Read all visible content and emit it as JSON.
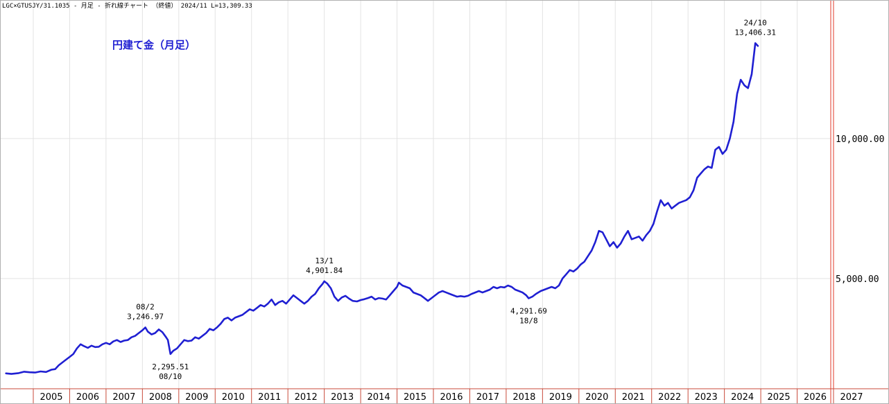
{
  "header": {
    "text": "LGC×GTUSJY/31.1035 - 月足 - 折れ線チャート （終値）  2024/11 L=13,309.33"
  },
  "chart_data": {
    "type": "line",
    "title": "円建て金（月足）",
    "xlabel": "",
    "ylabel": "",
    "x_ticks": [
      "2005",
      "2006",
      "2007",
      "2008",
      "2009",
      "2010",
      "2011",
      "2012",
      "2013",
      "2014",
      "2015",
      "2016",
      "2017",
      "2018",
      "2019",
      "2020",
      "2021",
      "2022",
      "2023",
      "2024",
      "2025",
      "2026",
      "2027"
    ],
    "y_ticks": [
      {
        "value": 5000,
        "label": "5,000.00"
      },
      {
        "value": 10000,
        "label": "10,000.00"
      }
    ],
    "xlim": [
      2004.2,
      2027.3
    ],
    "ylim": [
      1060,
      14900
    ],
    "grid": true,
    "color": "#1f1fd2",
    "series": [
      {
        "name": "",
        "points": [
          [
            2004.25,
            1610
          ],
          [
            2004.4,
            1590
          ],
          [
            2004.6,
            1620
          ],
          [
            2004.75,
            1670
          ],
          [
            2004.9,
            1650
          ],
          [
            2005.05,
            1640
          ],
          [
            2005.2,
            1680
          ],
          [
            2005.35,
            1660
          ],
          [
            2005.5,
            1740
          ],
          [
            2005.6,
            1760
          ],
          [
            2005.7,
            1900
          ],
          [
            2005.85,
            2050
          ],
          [
            2006.0,
            2200
          ],
          [
            2006.1,
            2300
          ],
          [
            2006.2,
            2500
          ],
          [
            2006.3,
            2650
          ],
          [
            2006.4,
            2580
          ],
          [
            2006.5,
            2520
          ],
          [
            2006.6,
            2600
          ],
          [
            2006.7,
            2550
          ],
          [
            2006.8,
            2560
          ],
          [
            2006.9,
            2650
          ],
          [
            2007.0,
            2700
          ],
          [
            2007.1,
            2650
          ],
          [
            2007.2,
            2750
          ],
          [
            2007.3,
            2800
          ],
          [
            2007.4,
            2730
          ],
          [
            2007.5,
            2780
          ],
          [
            2007.6,
            2800
          ],
          [
            2007.7,
            2900
          ],
          [
            2007.8,
            2950
          ],
          [
            2007.9,
            3050
          ],
          [
            2008.0,
            3150
          ],
          [
            2008.08,
            3250
          ],
          [
            2008.15,
            3100
          ],
          [
            2008.25,
            3000
          ],
          [
            2008.35,
            3050
          ],
          [
            2008.45,
            3180
          ],
          [
            2008.55,
            3080
          ],
          [
            2008.65,
            2900
          ],
          [
            2008.7,
            2800
          ],
          [
            2008.77,
            2300
          ],
          [
            2008.85,
            2420
          ],
          [
            2008.95,
            2500
          ],
          [
            2009.05,
            2650
          ],
          [
            2009.15,
            2800
          ],
          [
            2009.25,
            2760
          ],
          [
            2009.35,
            2780
          ],
          [
            2009.45,
            2900
          ],
          [
            2009.55,
            2850
          ],
          [
            2009.65,
            2950
          ],
          [
            2009.75,
            3050
          ],
          [
            2009.85,
            3200
          ],
          [
            2009.95,
            3150
          ],
          [
            2010.05,
            3250
          ],
          [
            2010.15,
            3380
          ],
          [
            2010.25,
            3550
          ],
          [
            2010.35,
            3600
          ],
          [
            2010.45,
            3500
          ],
          [
            2010.55,
            3600
          ],
          [
            2010.65,
            3650
          ],
          [
            2010.75,
            3700
          ],
          [
            2010.85,
            3800
          ],
          [
            2010.95,
            3900
          ],
          [
            2011.05,
            3850
          ],
          [
            2011.15,
            3950
          ],
          [
            2011.25,
            4050
          ],
          [
            2011.35,
            4000
          ],
          [
            2011.45,
            4100
          ],
          [
            2011.55,
            4250
          ],
          [
            2011.65,
            4050
          ],
          [
            2011.75,
            4150
          ],
          [
            2011.85,
            4200
          ],
          [
            2011.95,
            4100
          ],
          [
            2012.05,
            4250
          ],
          [
            2012.15,
            4400
          ],
          [
            2012.25,
            4300
          ],
          [
            2012.35,
            4200
          ],
          [
            2012.45,
            4100
          ],
          [
            2012.55,
            4200
          ],
          [
            2012.65,
            4350
          ],
          [
            2012.75,
            4450
          ],
          [
            2012.85,
            4650
          ],
          [
            2012.95,
            4800
          ],
          [
            2013.0,
            4900
          ],
          [
            2013.08,
            4820
          ],
          [
            2013.18,
            4650
          ],
          [
            2013.28,
            4350
          ],
          [
            2013.38,
            4200
          ],
          [
            2013.48,
            4320
          ],
          [
            2013.58,
            4380
          ],
          [
            2013.68,
            4280
          ],
          [
            2013.78,
            4200
          ],
          [
            2013.9,
            4180
          ],
          [
            2014.0,
            4230
          ],
          [
            2014.1,
            4260
          ],
          [
            2014.2,
            4300
          ],
          [
            2014.3,
            4350
          ],
          [
            2014.4,
            4250
          ],
          [
            2014.5,
            4300
          ],
          [
            2014.6,
            4280
          ],
          [
            2014.7,
            4250
          ],
          [
            2014.8,
            4400
          ],
          [
            2014.9,
            4550
          ],
          [
            2015.0,
            4700
          ],
          [
            2015.05,
            4850
          ],
          [
            2015.15,
            4750
          ],
          [
            2015.25,
            4700
          ],
          [
            2015.35,
            4650
          ],
          [
            2015.45,
            4500
          ],
          [
            2015.55,
            4450
          ],
          [
            2015.65,
            4400
          ],
          [
            2015.75,
            4300
          ],
          [
            2015.85,
            4200
          ],
          [
            2015.95,
            4300
          ],
          [
            2016.05,
            4400
          ],
          [
            2016.15,
            4500
          ],
          [
            2016.25,
            4550
          ],
          [
            2016.35,
            4500
          ],
          [
            2016.45,
            4450
          ],
          [
            2016.55,
            4400
          ],
          [
            2016.65,
            4350
          ],
          [
            2016.75,
            4370
          ],
          [
            2016.85,
            4350
          ],
          [
            2016.95,
            4380
          ],
          [
            2017.05,
            4450
          ],
          [
            2017.15,
            4500
          ],
          [
            2017.25,
            4550
          ],
          [
            2017.35,
            4500
          ],
          [
            2017.45,
            4550
          ],
          [
            2017.55,
            4600
          ],
          [
            2017.65,
            4700
          ],
          [
            2017.75,
            4650
          ],
          [
            2017.85,
            4700
          ],
          [
            2017.95,
            4680
          ],
          [
            2018.05,
            4750
          ],
          [
            2018.15,
            4700
          ],
          [
            2018.25,
            4600
          ],
          [
            2018.35,
            4550
          ],
          [
            2018.45,
            4500
          ],
          [
            2018.55,
            4400
          ],
          [
            2018.62,
            4292
          ],
          [
            2018.72,
            4350
          ],
          [
            2018.82,
            4450
          ],
          [
            2018.95,
            4550
          ],
          [
            2019.05,
            4600
          ],
          [
            2019.15,
            4650
          ],
          [
            2019.25,
            4700
          ],
          [
            2019.35,
            4650
          ],
          [
            2019.45,
            4750
          ],
          [
            2019.55,
            5000
          ],
          [
            2019.65,
            5150
          ],
          [
            2019.75,
            5300
          ],
          [
            2019.85,
            5250
          ],
          [
            2019.95,
            5350
          ],
          [
            2020.05,
            5500
          ],
          [
            2020.15,
            5600
          ],
          [
            2020.25,
            5800
          ],
          [
            2020.35,
            6000
          ],
          [
            2020.45,
            6300
          ],
          [
            2020.55,
            6700
          ],
          [
            2020.65,
            6650
          ],
          [
            2020.75,
            6400
          ],
          [
            2020.85,
            6150
          ],
          [
            2020.95,
            6300
          ],
          [
            2021.05,
            6100
          ],
          [
            2021.15,
            6250
          ],
          [
            2021.25,
            6500
          ],
          [
            2021.35,
            6700
          ],
          [
            2021.45,
            6400
          ],
          [
            2021.55,
            6450
          ],
          [
            2021.65,
            6500
          ],
          [
            2021.75,
            6350
          ],
          [
            2021.85,
            6550
          ],
          [
            2021.95,
            6700
          ],
          [
            2022.05,
            6950
          ],
          [
            2022.15,
            7400
          ],
          [
            2022.25,
            7800
          ],
          [
            2022.35,
            7600
          ],
          [
            2022.45,
            7700
          ],
          [
            2022.55,
            7500
          ],
          [
            2022.65,
            7600
          ],
          [
            2022.75,
            7700
          ],
          [
            2022.85,
            7750
          ],
          [
            2022.95,
            7800
          ],
          [
            2023.05,
            7900
          ],
          [
            2023.15,
            8150
          ],
          [
            2023.25,
            8600
          ],
          [
            2023.35,
            8750
          ],
          [
            2023.45,
            8900
          ],
          [
            2023.55,
            9000
          ],
          [
            2023.65,
            8950
          ],
          [
            2023.75,
            9600
          ],
          [
            2023.85,
            9700
          ],
          [
            2023.95,
            9450
          ],
          [
            2024.05,
            9600
          ],
          [
            2024.15,
            10000
          ],
          [
            2024.25,
            10600
          ],
          [
            2024.35,
            11600
          ],
          [
            2024.45,
            12100
          ],
          [
            2024.55,
            11900
          ],
          [
            2024.65,
            11800
          ],
          [
            2024.75,
            12300
          ],
          [
            2024.85,
            13406
          ],
          [
            2024.92,
            13309
          ]
        ]
      }
    ],
    "annotations": [
      {
        "x": 2008.08,
        "y": 3246.97,
        "lines": [
          "08/2",
          "3,246.97"
        ],
        "pos": "above"
      },
      {
        "x": 2008.77,
        "y": 2295.51,
        "lines": [
          "2,295.51",
          "08/10"
        ],
        "pos": "below"
      },
      {
        "x": 2013.0,
        "y": 4901.84,
        "lines": [
          "13/1",
          "4,901.84"
        ],
        "pos": "above"
      },
      {
        "x": 2018.62,
        "y": 4291.69,
        "lines": [
          "4,291.69",
          "18/8"
        ],
        "pos": "below"
      },
      {
        "x": 2024.85,
        "y": 13406.31,
        "lines": [
          "24/10",
          "13,406.31"
        ],
        "pos": "above"
      }
    ]
  }
}
